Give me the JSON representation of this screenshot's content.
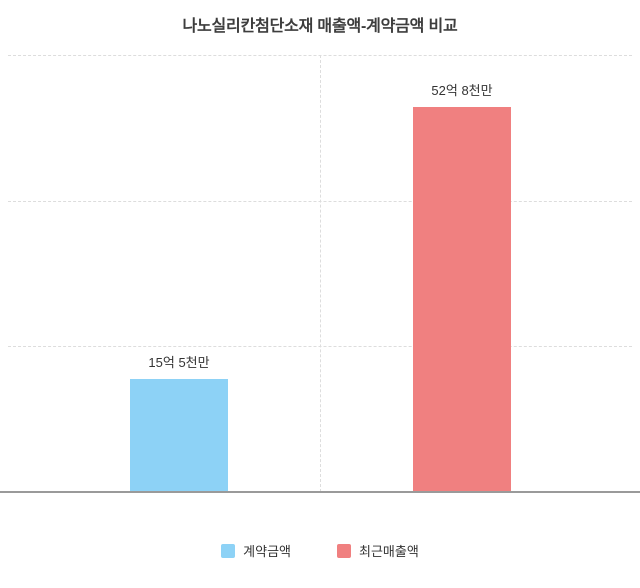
{
  "chart_data": {
    "type": "bar",
    "title": "나노실리칸첨단소재 매출액-계약금액 비교",
    "categories": [
      "계약금액",
      "최근매출액"
    ],
    "values": [
      15.5,
      52.8
    ],
    "value_unit": "억원",
    "data_labels": [
      "15억 5천만",
      "52억 8천만"
    ],
    "series_colors": [
      "#8dd2f6",
      "#f08080"
    ],
    "xlabel": "",
    "ylabel": "",
    "ylim": [
      0,
      60
    ],
    "grid": "horizontal-dashed, center-vertical-dashed",
    "axis_tick_labels_visible": false,
    "legend_position": "bottom"
  }
}
